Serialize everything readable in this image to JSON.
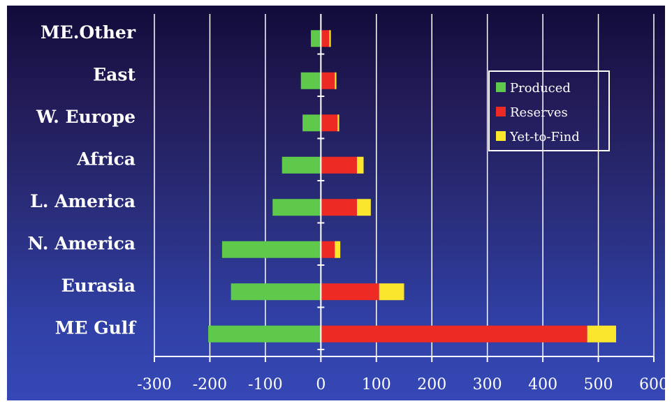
{
  "chart_data": {
    "type": "bar",
    "orientation": "horizontal",
    "stacked": true,
    "categories": [
      "ME.Other",
      "East",
      "W. Europe",
      "Africa",
      "L. America",
      "N. America",
      "Eurasia",
      "ME Gulf"
    ],
    "series": [
      {
        "name": "Produced",
        "values": [
          -18,
          -36,
          -33,
          -70,
          -87,
          -178,
          -162,
          -203
        ]
      },
      {
        "name": "Reserves",
        "values": [
          15,
          25,
          30,
          65,
          65,
          25,
          105,
          480
        ]
      },
      {
        "name": "Yet-to-Find",
        "values": [
          3,
          3,
          3,
          12,
          25,
          10,
          45,
          52
        ]
      }
    ],
    "x_ticks": [
      "-300",
      "-200",
      "-100",
      "0",
      "100",
      "200",
      "300",
      "400",
      "500",
      "600"
    ],
    "xlim": [
      -300,
      600
    ],
    "grid": true,
    "legend_position": "top-right",
    "colors": {
      "Produced": "#5ec94a",
      "Reserves": "#ee2a24",
      "Yet-to-Find": "#fbe62e"
    }
  }
}
